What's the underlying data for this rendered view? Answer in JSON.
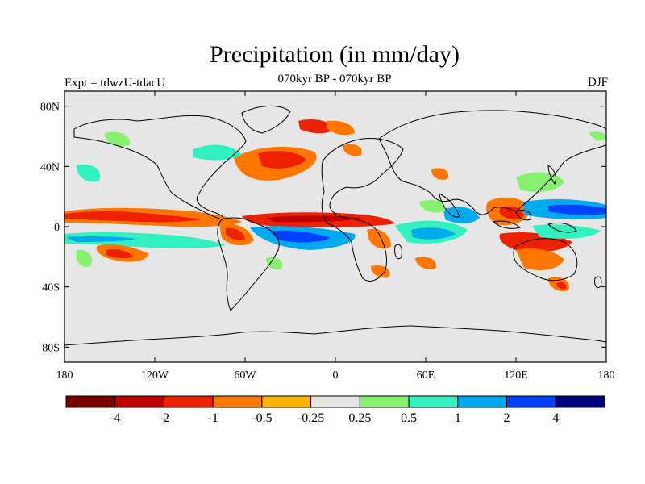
{
  "header": {
    "title": "Precipitation (in mm/day)",
    "subtitle": "070kyr BP - 070kyr BP",
    "experiment": "Expt = tdwzU-tdacU",
    "season": "DJF"
  },
  "axes": {
    "lat_labels": [
      "80N",
      "40N",
      "0",
      "40S",
      "80S"
    ],
    "lat_values": [
      80,
      40,
      0,
      -40,
      -80
    ],
    "lon_labels": [
      "180",
      "120W",
      "60W",
      "0",
      "60E",
      "120E",
      "180"
    ],
    "lon_values": [
      -180,
      -120,
      -60,
      0,
      60,
      120,
      180
    ]
  },
  "colorbar": {
    "colors": [
      "#7a0000",
      "#c00000",
      "#ee2200",
      "#ff7700",
      "#ffb400",
      "#e6e6e6",
      "#88f070",
      "#33f0c0",
      "#00aaee",
      "#0040ff",
      "#00007f"
    ],
    "labels": [
      "-4",
      "-2",
      "-1",
      "-0.5",
      "-0.25",
      "0.25",
      "0.5",
      "1",
      "2",
      "4"
    ]
  },
  "colors": {
    "land_ocean_background": "#e6e6e6",
    "coastline": "#000000"
  }
}
